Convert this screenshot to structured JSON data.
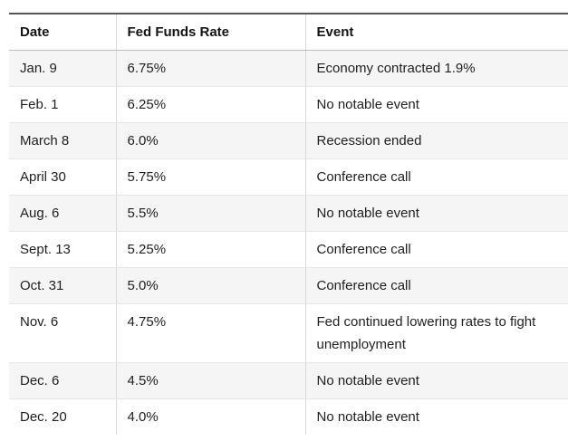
{
  "chart_data": {
    "type": "table",
    "title": "",
    "columns": [
      "Date",
      "Fed Funds Rate",
      "Event"
    ],
    "rows": [
      [
        "Jan. 9",
        "6.75%",
        "Economy contracted 1.9%"
      ],
      [
        "Feb. 1",
        "6.25%",
        "No notable event"
      ],
      [
        "March 8",
        "6.0%",
        "Recession ended"
      ],
      [
        "April 30",
        "5.75%",
        "Conference call"
      ],
      [
        "Aug. 6",
        "5.5%",
        "No notable event"
      ],
      [
        "Sept. 13",
        "5.25%",
        "Conference call"
      ],
      [
        "Oct. 31",
        "5.0%",
        "Conference call"
      ],
      [
        "Nov. 6",
        "4.75%",
        "Fed continued lowering rates to fight unemployment"
      ],
      [
        "Dec. 6",
        "4.5%",
        "No notable event"
      ],
      [
        "Dec. 20",
        "4.0%",
        "No notable event"
      ]
    ],
    "layout_hints": {
      "zebra_striping": true,
      "striped_rows": "odd (first data row shaded)",
      "top_rule": true
    }
  },
  "colors": {
    "stripe_background": "#f5f5f6",
    "top_border": "#55555a",
    "header_border": "#bfbfc2",
    "row_divider": "#e6e6e8",
    "column_divider": "#d9d9db",
    "text": "#1f1f22",
    "header_text": "#141417",
    "page_background": "#ffffff"
  }
}
